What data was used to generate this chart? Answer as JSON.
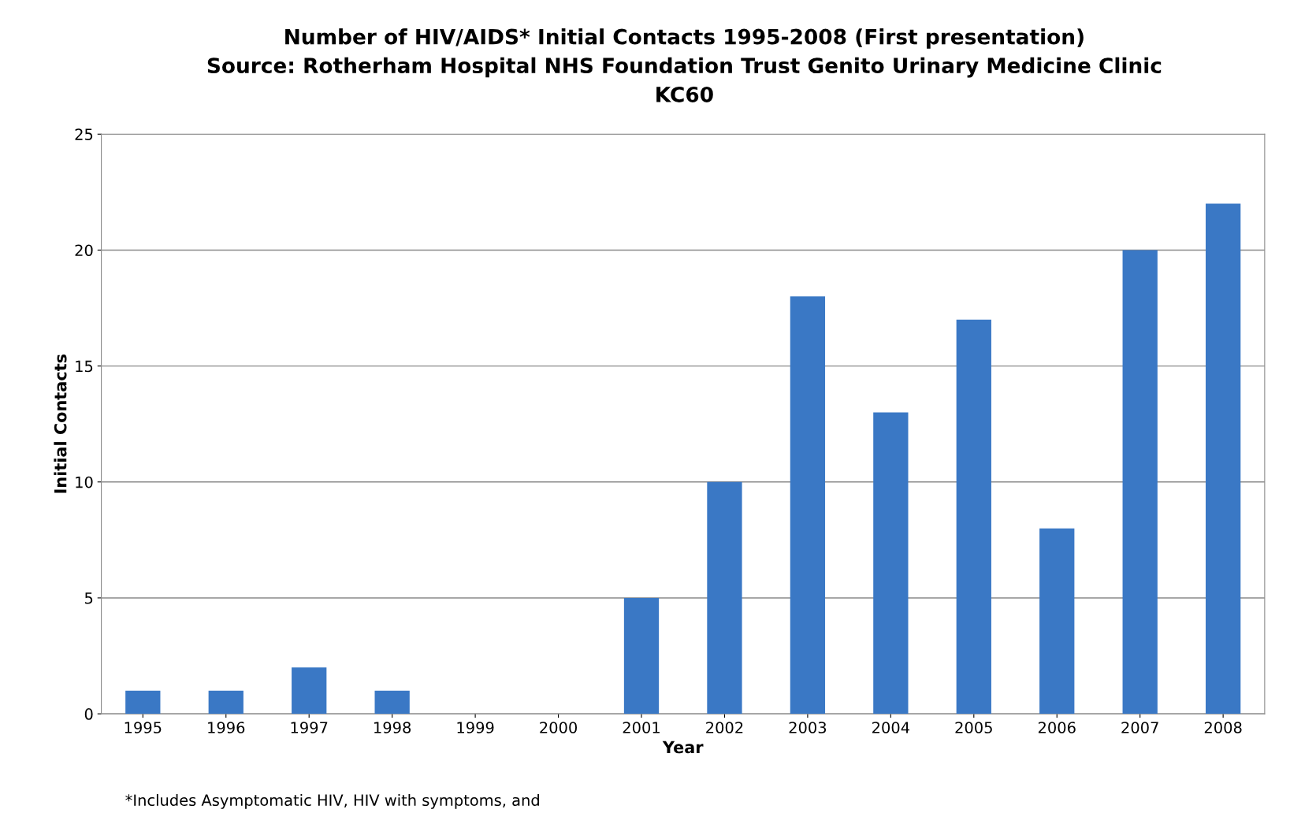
{
  "chart_data": {
    "type": "bar",
    "title": "Number of HIV/AIDS* Initial Contacts 1995-2008 (First presentation)\nSource: Rotherham Hospital NHS Foundation Trust Genito Urinary Medicine Clinic\nKC60",
    "xlabel": "Year",
    "ylabel": "Initial Contacts",
    "categories": [
      "1995",
      "1996",
      "1997",
      "1998",
      "1999",
      "2000",
      "2001",
      "2002",
      "2003",
      "2004",
      "2005",
      "2006",
      "2007",
      "2008"
    ],
    "values": [
      1,
      1,
      2,
      1,
      0,
      0,
      5,
      10,
      18,
      13,
      17,
      8,
      20,
      22
    ],
    "color": "#3a78c5",
    "ylim": [
      0,
      25
    ],
    "yticks": [
      0,
      5,
      10,
      15,
      20,
      25
    ],
    "grid": "y",
    "legend": false,
    "annotations": [
      "*Includes Asymptomatic HIV, HIV with symptoms, and"
    ]
  }
}
